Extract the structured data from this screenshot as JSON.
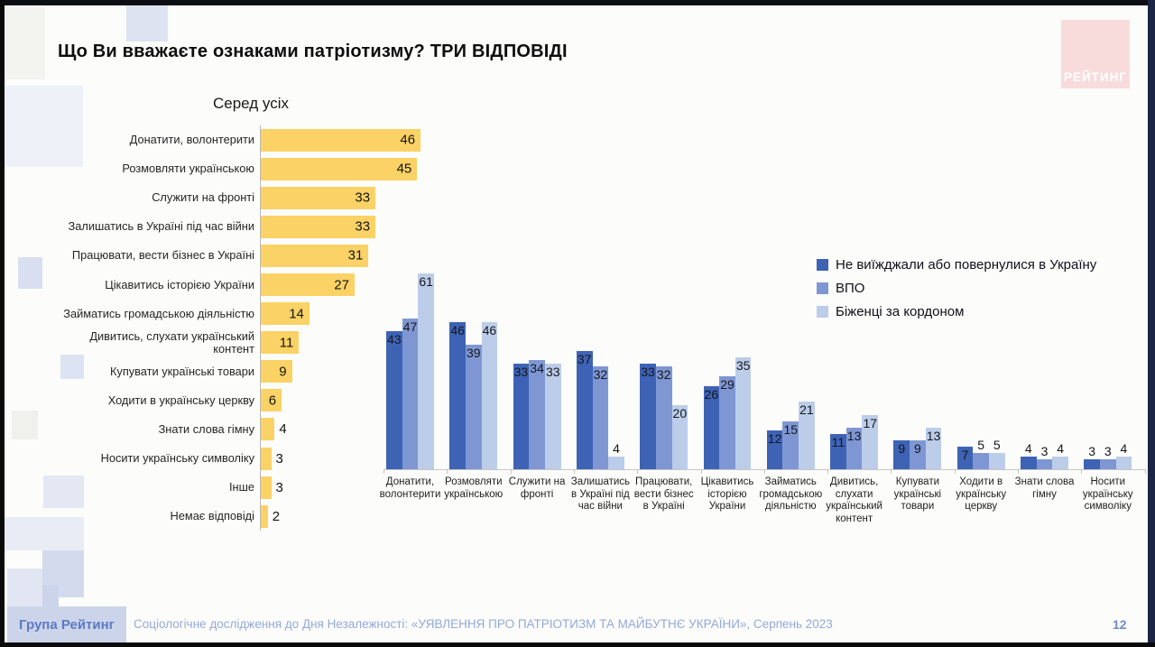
{
  "title": "Що Ви вважаєте ознаками патріотизму? ТРИ ВІДПОВІДІ",
  "logo": {
    "text": "РЕЙТИНГ"
  },
  "footer": {
    "brand": "Група Рейтинг",
    "source": "Соціологічне дослідження до Дня Незалежності: «УЯВЛЕННЯ ПРО ПАТРІОТИЗМ ТА МАЙБУТНЄ УКРАЇНИ», Серпень 2023",
    "page": "12"
  },
  "colors": {
    "yellow_bar": "#fad265",
    "series_stayed": "#3e63b5",
    "series_idp": "#7e97d3",
    "series_refugees": "#bccde9"
  },
  "chart_data": [
    {
      "type": "bar",
      "orientation": "horizontal",
      "title": "Серед усіх",
      "categories": [
        "Донатити, волонтерити",
        "Розмовляти українською",
        "Служити на фронті",
        "Залишатись в Україні під час війни",
        "Працювати, вести бізнес в Україні",
        "Цікавитись історією України",
        "Займатись громадською діяльністю",
        "Дивитись, слухати український контент",
        "Купувати українські товари",
        "Ходити в українську церкву",
        "Знати слова гімну",
        "Носити українську символіку",
        "Інше",
        "Немає відповіді"
      ],
      "values": [
        46,
        45,
        33,
        33,
        31,
        27,
        14,
        11,
        9,
        6,
        4,
        3,
        3,
        2
      ],
      "bar_color": "#fad265",
      "xlim": [
        0,
        50
      ],
      "grid": false
    },
    {
      "type": "bar",
      "orientation": "vertical-grouped",
      "categories": [
        "Донатити,\nволонтерити",
        "Розмовляти\nукраїнською",
        "Служити на\nфронті",
        "Залишатись\nв Україні під\nчас війни",
        "Працювати,\nвести бізнес\nв Україні",
        "Цікавитись\nісторією\nУкраїни",
        "Займатись\nгромадською\nдіяльністю",
        "Дивитись,\nслухати\nукраїнський\nконтент",
        "Купувати\nукраїнські\nтовари",
        "Ходити в\nукраїнську\nцеркву",
        "Знати слова\nгімну",
        "Носити\nукраїнську\nсимволіку"
      ],
      "series": [
        {
          "name": "Не виїжджали або повернулися в Україну",
          "color": "#3e63b5",
          "values": [
            43,
            46,
            33,
            37,
            33,
            26,
            12,
            11,
            9,
            7,
            4,
            3
          ]
        },
        {
          "name": "ВПО",
          "color": "#7e97d3",
          "values": [
            47,
            39,
            34,
            32,
            32,
            29,
            15,
            13,
            9,
            5,
            3,
            3
          ]
        },
        {
          "name": "Біженці за кордоном",
          "color": "#bccde9",
          "values": [
            61,
            46,
            33,
            4,
            20,
            35,
            21,
            17,
            13,
            5,
            4,
            4
          ]
        }
      ],
      "ylim": [
        0,
        65
      ],
      "grid": false,
      "legend_position": "top-right"
    }
  ]
}
